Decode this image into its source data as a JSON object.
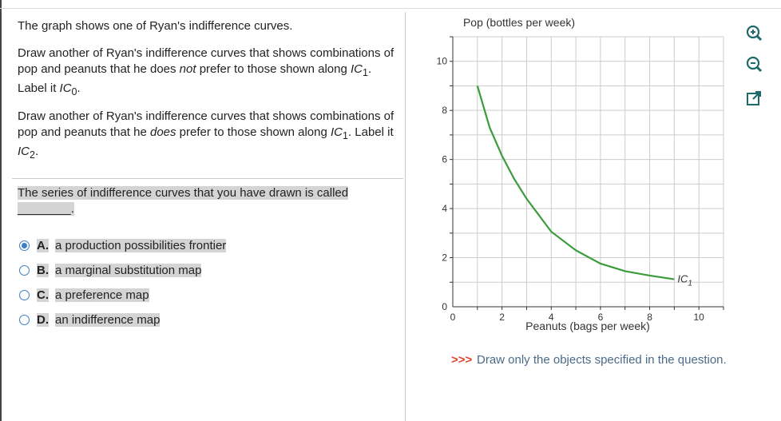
{
  "question": {
    "intro": "The graph shows one of Ryan's indifference curves.",
    "p1": [
      "Draw another of Ryan's indifference curves that shows combinations of pop and peanuts that he does ",
      "not",
      " prefer to those shown along ",
      "IC",
      "1",
      ". Label it ",
      "IC",
      "0",
      "."
    ],
    "p2": [
      "Draw another of Ryan's indifference curves that shows combinations of pop and peanuts that he ",
      "does",
      " prefer to those shown along ",
      "IC",
      "1",
      ". Label it ",
      "IC",
      "2",
      "."
    ],
    "prompt": "The series of indifference curves that you have drawn is called",
    "blank": "________.",
    "options": [
      {
        "letter": "A.",
        "text": "a production possibilities frontier"
      },
      {
        "letter": "B.",
        "text": "a marginal substitution map"
      },
      {
        "letter": "C.",
        "text": "a preference map"
      },
      {
        "letter": "D.",
        "text": "an indifference map"
      }
    ],
    "selected_option": 0
  },
  "chart_data": {
    "type": "line",
    "y_label": "Pop (bottles per week)",
    "x_label": "Peanuts (bags per week)",
    "xlim": [
      0,
      11
    ],
    "ylim": [
      0,
      11
    ],
    "xticks": [
      0,
      2,
      4,
      6,
      8,
      10
    ],
    "yticks": [
      0,
      2,
      4,
      6,
      8,
      10
    ],
    "xgrid": [
      1,
      2,
      3,
      4,
      5,
      6,
      7,
      8,
      9,
      10,
      11
    ],
    "ygrid": [
      1,
      2,
      3,
      4,
      5,
      6,
      7,
      8,
      9,
      10,
      11
    ],
    "x": [
      1,
      1.5,
      2,
      2.5,
      3,
      4,
      5,
      6,
      7,
      8,
      9
    ],
    "series": [
      {
        "name": "IC",
        "name_sub": "1",
        "color": "#3a9c3a",
        "values": [
          9,
          7.3,
          6.15,
          5.2,
          4.4,
          3.06,
          2.3,
          1.76,
          1.45,
          1.27,
          1.12
        ]
      }
    ]
  },
  "footer": {
    "marker": ">>>",
    "text": "Draw only the objects specified in the question."
  }
}
